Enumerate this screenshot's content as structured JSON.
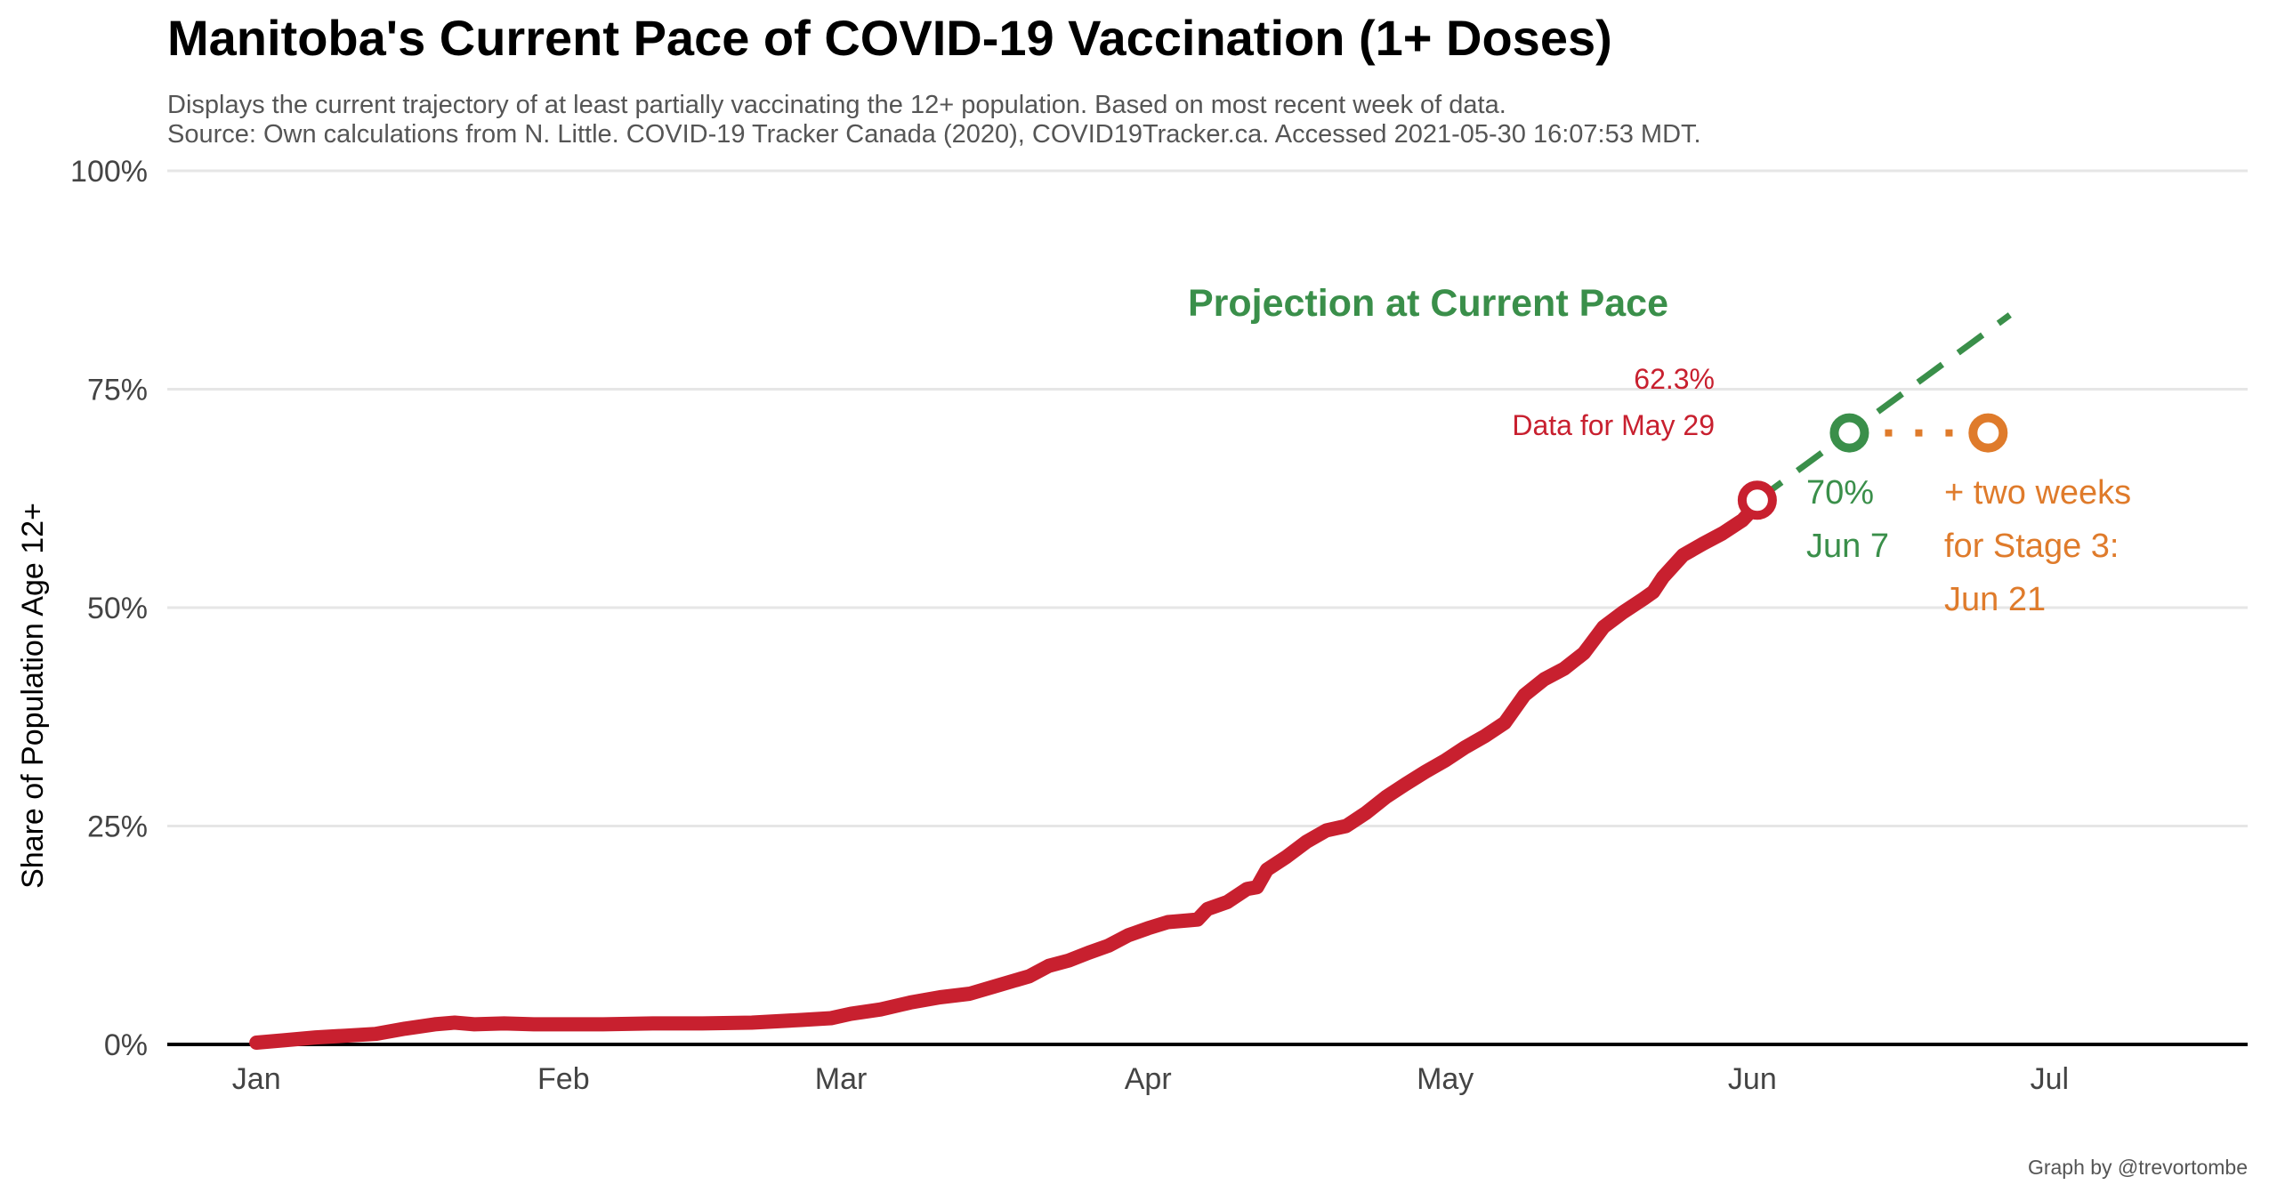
{
  "title": "Manitoba's Current Pace of COVID-19 Vaccination (1+ Doses)",
  "subtitle_line1": "Displays the current trajectory of at least partially vaccinating the 12+ population. Based on most recent week of data.",
  "subtitle_line2": "Source: Own calculations from N. Little. COVID-19 Tracker Canada (2020), COVID19Tracker.ca. Accessed 2021-05-30 16:07:53 MDT.",
  "caption": "Graph by @trevortombe",
  "colors": {
    "actual": "#c8202f",
    "projection": "#3a8f4a",
    "stage3": "#df7b2b",
    "grid": "#e6e6e6",
    "baseline": "#000000"
  },
  "chart_data": {
    "type": "line",
    "xlabel": "",
    "ylabel": "Share of Population Age 12+",
    "x_is_day_of_year_2021": true,
    "xlim_day": [
      -9,
      201
    ],
    "ylim": [
      0,
      100
    ],
    "y_ticks": [
      0,
      25,
      50,
      75,
      100
    ],
    "y_tick_labels": [
      "0%",
      "25%",
      "50%",
      "75%",
      "100%"
    ],
    "x_ticks": [
      {
        "day": 0,
        "label": "Jan"
      },
      {
        "day": 31,
        "label": "Feb"
      },
      {
        "day": 59,
        "label": "Mar"
      },
      {
        "day": 90,
        "label": "Apr"
      },
      {
        "day": 120,
        "label": "May"
      },
      {
        "day": 151,
        "label": "Jun"
      },
      {
        "day": 181,
        "label": "Jul"
      }
    ],
    "grid": true,
    "series": [
      {
        "role": "actual",
        "points": [
          [
            0,
            0.2
          ],
          [
            3,
            0.5
          ],
          [
            6,
            0.8
          ],
          [
            9,
            1.0
          ],
          [
            12,
            1.2
          ],
          [
            15,
            1.8
          ],
          [
            18,
            2.3
          ],
          [
            20,
            2.5
          ],
          [
            22,
            2.3
          ],
          [
            25,
            2.4
          ],
          [
            28,
            2.3
          ],
          [
            35,
            2.3
          ],
          [
            40,
            2.4
          ],
          [
            45,
            2.4
          ],
          [
            50,
            2.5
          ],
          [
            55,
            2.8
          ],
          [
            58,
            3.0
          ],
          [
            60,
            3.5
          ],
          [
            63,
            4.0
          ],
          [
            66,
            4.8
          ],
          [
            69,
            5.4
          ],
          [
            72,
            5.8
          ],
          [
            75,
            6.8
          ],
          [
            78,
            7.8
          ],
          [
            80,
            9.0
          ],
          [
            82,
            9.6
          ],
          [
            84,
            10.5
          ],
          [
            86,
            11.3
          ],
          [
            88,
            12.5
          ],
          [
            90,
            13.3
          ],
          [
            92,
            14.0
          ],
          [
            94,
            14.2
          ],
          [
            95,
            14.3
          ],
          [
            96,
            15.5
          ],
          [
            98,
            16.3
          ],
          [
            100,
            17.8
          ],
          [
            101,
            18.0
          ],
          [
            102,
            20.0
          ],
          [
            104,
            21.5
          ],
          [
            106,
            23.2
          ],
          [
            108,
            24.5
          ],
          [
            110,
            25.0
          ],
          [
            112,
            26.5
          ],
          [
            114,
            28.3
          ],
          [
            116,
            29.8
          ],
          [
            118,
            31.2
          ],
          [
            120,
            32.5
          ],
          [
            122,
            34.0
          ],
          [
            124,
            35.3
          ],
          [
            126,
            36.8
          ],
          [
            128,
            40.0
          ],
          [
            130,
            41.8
          ],
          [
            132,
            43.0
          ],
          [
            134,
            44.8
          ],
          [
            136,
            47.8
          ],
          [
            138,
            49.5
          ],
          [
            140,
            51.0
          ],
          [
            141,
            51.8
          ],
          [
            142,
            53.5
          ],
          [
            144,
            56.0
          ],
          [
            146,
            57.3
          ],
          [
            148,
            58.5
          ],
          [
            150,
            60.0
          ],
          [
            151,
            61.2
          ],
          [
            151.5,
            62.3
          ]
        ]
      },
      {
        "role": "projection",
        "points": [
          [
            151.5,
            62.3
          ],
          [
            177,
            83.5
          ]
        ]
      }
    ],
    "markers": [
      {
        "role": "actual",
        "day": 151.5,
        "value": 62.3
      },
      {
        "role": "projection",
        "day": 160.8,
        "value": 70
      },
      {
        "role": "stage3",
        "day": 174.8,
        "value": 70
      }
    ],
    "stage3_connector": {
      "from_day": 160.8,
      "to_day": 174.8,
      "value": 70
    },
    "annotations": {
      "projection_title": "Projection at Current Pace",
      "actual_value": "62.3%",
      "actual_label": "Data for May 29",
      "target_pct": "70%",
      "target_date": "Jun 7",
      "stage3_line1": "+ two weeks",
      "stage3_line2": "for Stage 3:",
      "stage3_line3": "Jun 21"
    }
  }
}
